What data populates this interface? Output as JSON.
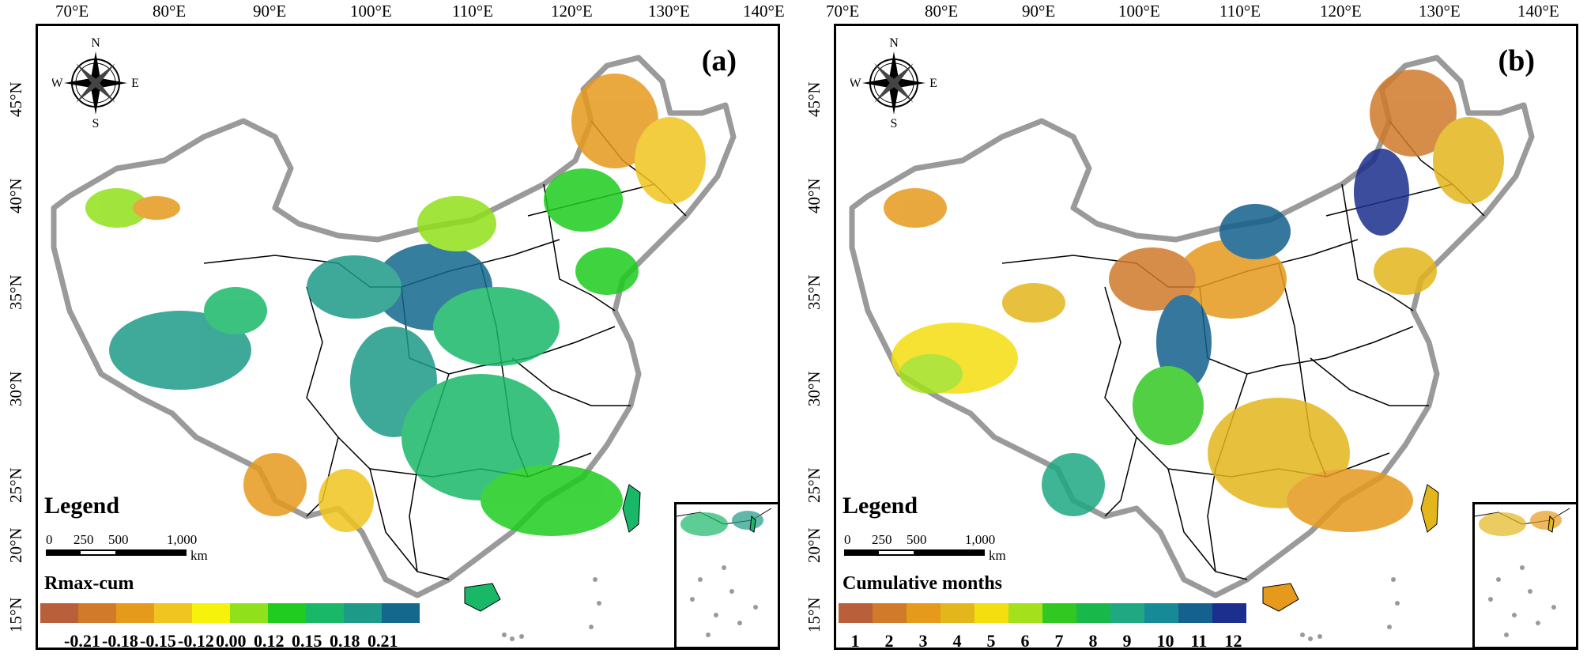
{
  "longitude_labels": [
    "70°E",
    "80°E",
    "90°E",
    "100°E",
    "110°E",
    "120°E",
    "130°E",
    "140°E"
  ],
  "latitude_labels": [
    "45°N",
    "40°N",
    "35°N",
    "30°N",
    "25°N",
    "20°N",
    "15°N"
  ],
  "compass": {
    "north": "N",
    "south": "S",
    "east": "E",
    "west": "W"
  },
  "scale": {
    "ticks": [
      "0",
      "250",
      "500",
      "1,000"
    ],
    "unit": "km"
  },
  "colors": {
    "frame": "#000000",
    "border_gray": "#9a9a9a",
    "background": "#ffffff"
  },
  "panels": [
    {
      "letter": "(a)",
      "legend_title": "Legend",
      "colorbar_title": "Rmax-cum",
      "colorbar_colors": [
        "#b9603a",
        "#d07a2a",
        "#e69a1c",
        "#f0c51f",
        "#f7f20b",
        "#90e01b",
        "#1fcc1f",
        "#19b868",
        "#1d9a88",
        "#14688e"
      ],
      "colorbar_labels": [
        "-0.21",
        "-0.18",
        "-0.15",
        "-0.12",
        "0.00",
        "0.12",
        "0.15",
        "0.18",
        "0.21"
      ]
    },
    {
      "letter": "(b)",
      "legend_title": "Legend",
      "colorbar_title": "Cumulative months",
      "colorbar_colors": [
        "#b9603a",
        "#d07a2a",
        "#e69a1c",
        "#e3b61c",
        "#f5de10",
        "#a4e01b",
        "#32c822",
        "#19b84a",
        "#1fa882",
        "#168a96",
        "#14608e",
        "#1c2f8e"
      ],
      "colorbar_labels": [
        "1",
        "2",
        "3",
        "4",
        "5",
        "6",
        "7",
        "8",
        "9",
        "10",
        "11",
        "12"
      ]
    }
  ]
}
